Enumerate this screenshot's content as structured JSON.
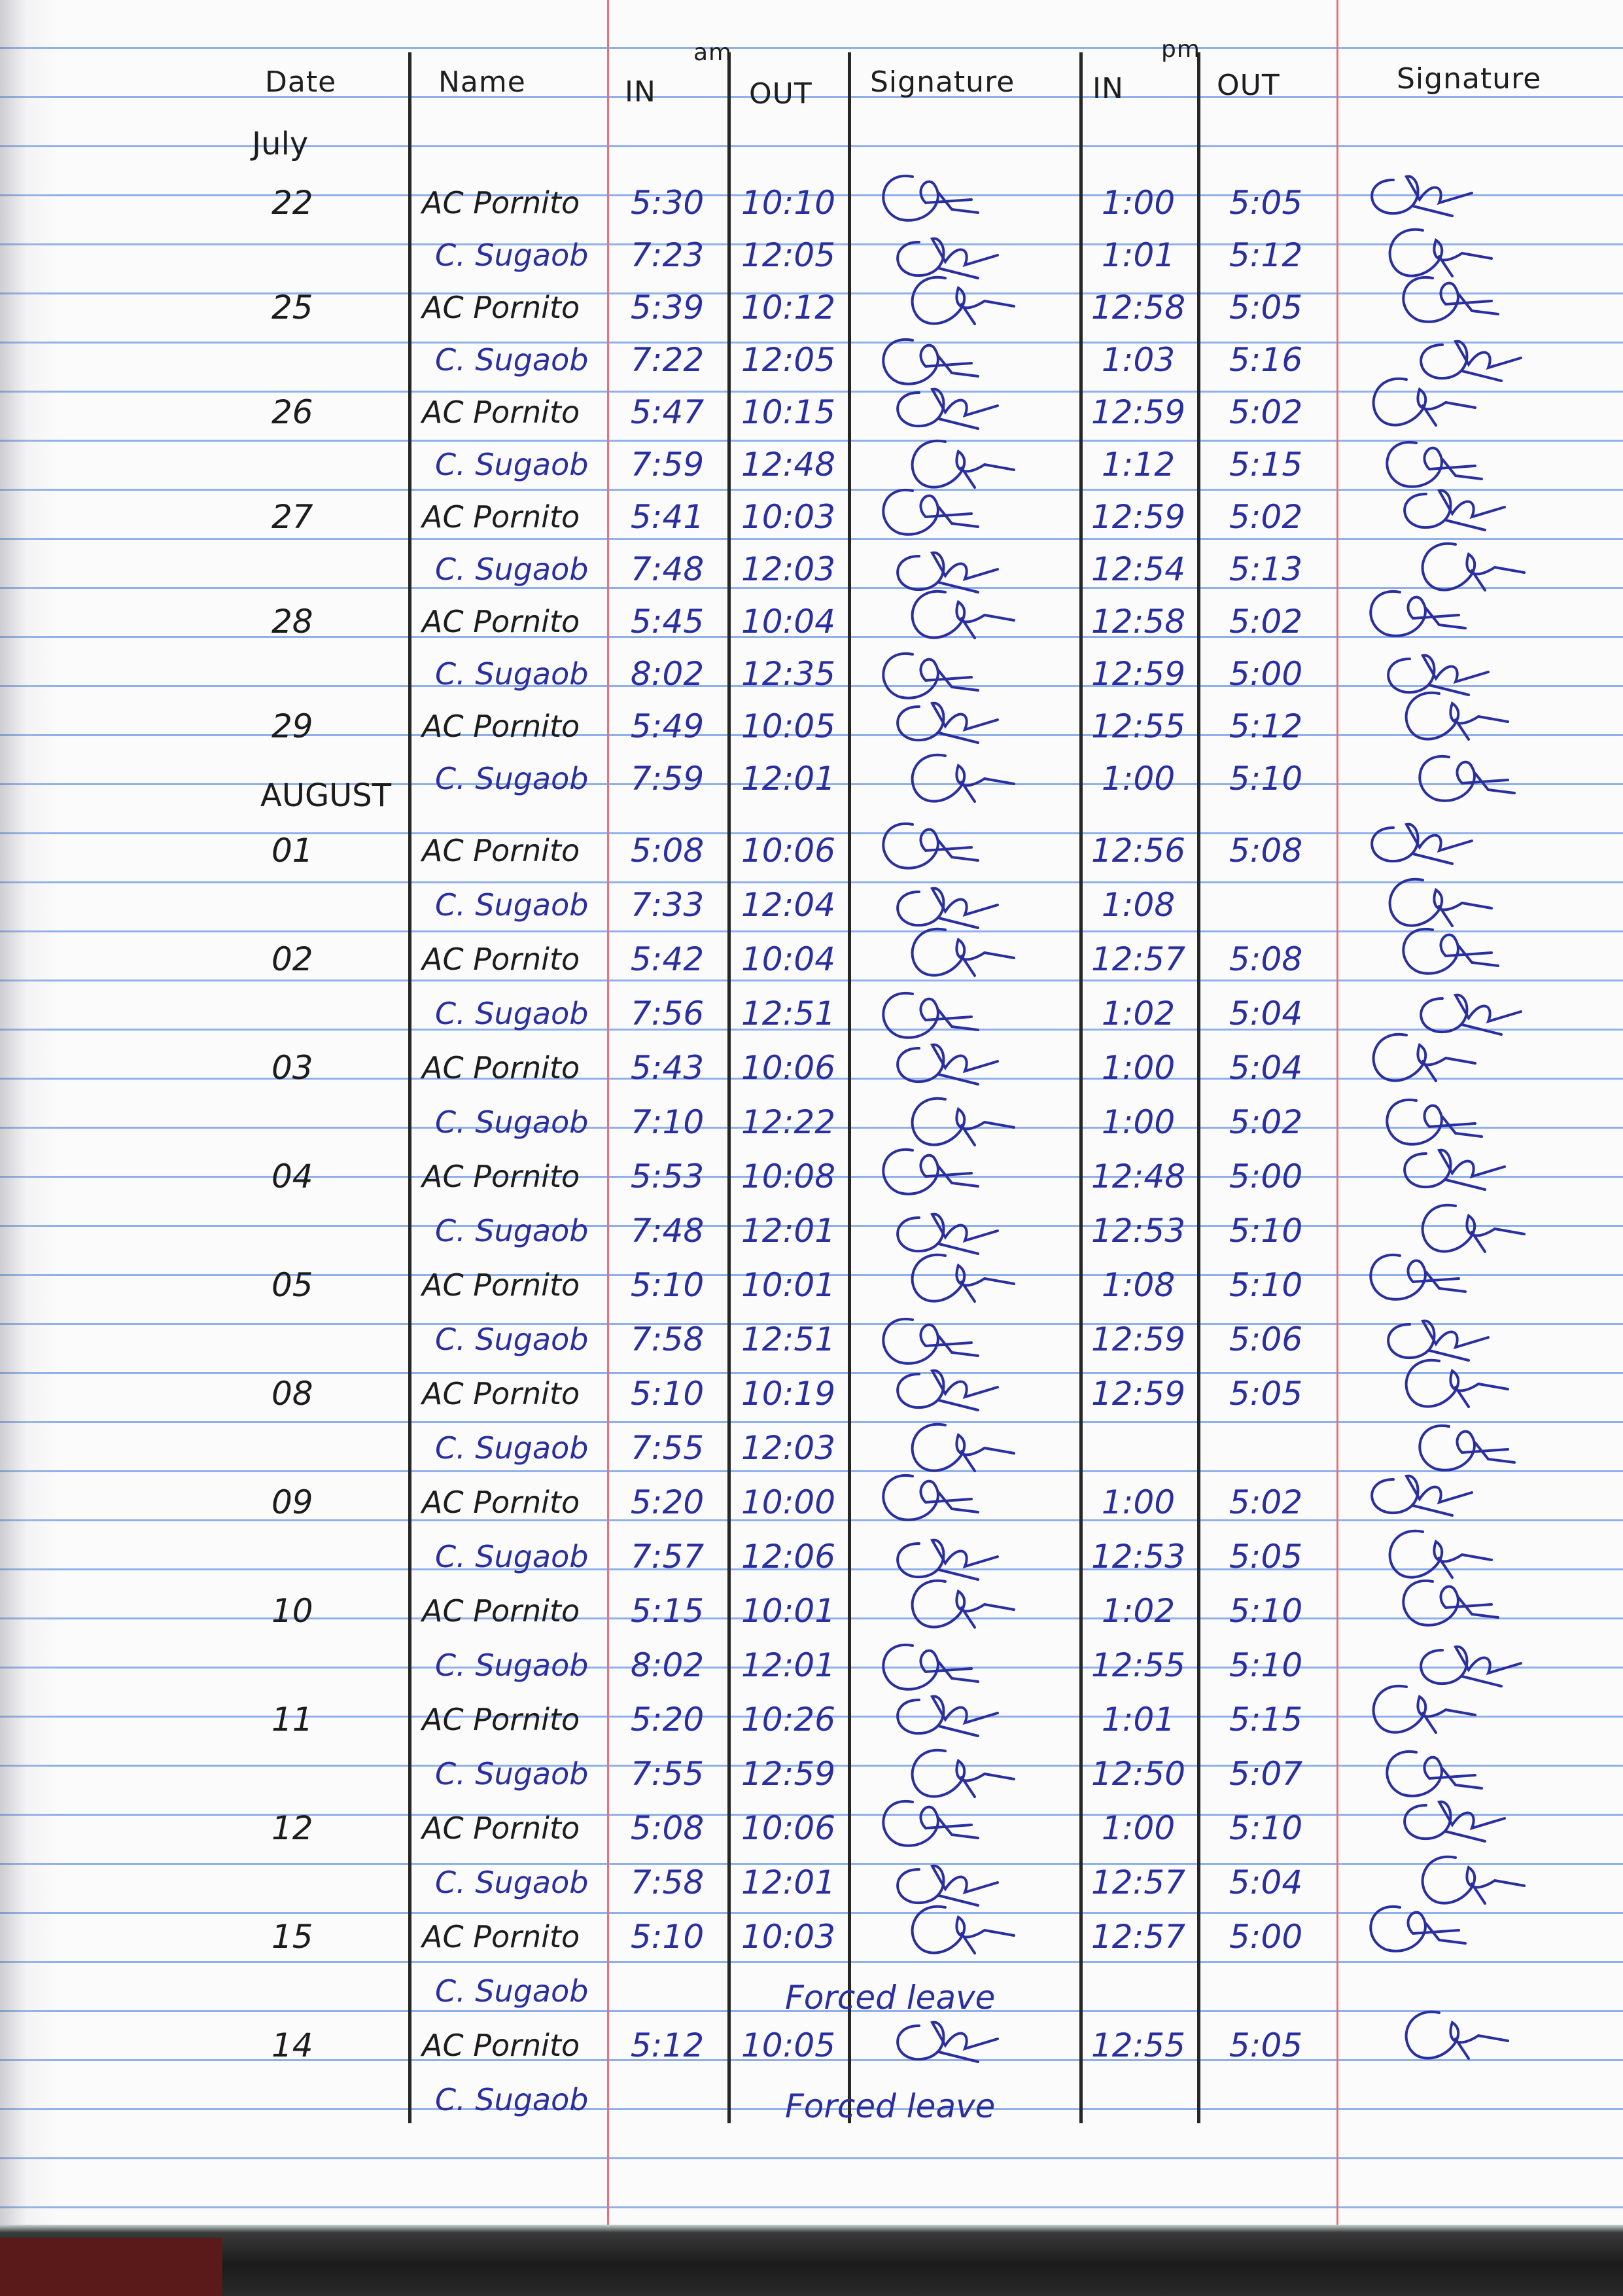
{
  "header": {
    "date": "Date",
    "name": "Name",
    "am_label": "am",
    "pm_label": "pm",
    "am_in": "IN",
    "am_out": "OUT",
    "am_signature": "Signature",
    "pm_in": "IN",
    "pm_out": "OUT",
    "pm_signature": "Signature"
  },
  "months": {
    "first": "July",
    "second": "AUGUST"
  },
  "colors": {
    "blue_ink": "#2a2fa0",
    "black_ink": "#1c1c1c",
    "rule_blue": "#8fb0e8",
    "margin_red": "#e8707a"
  },
  "rows": [
    {
      "month_group": 0,
      "date": "22",
      "name": "AC Pornito",
      "am_in": "5:30",
      "am_out": "10:10",
      "pm_in": "1:00",
      "pm_out": "5:05"
    },
    {
      "month_group": 0,
      "date": "",
      "name": "C. Sugaob",
      "am_in": "7:23",
      "am_out": "12:05",
      "pm_in": "1:01",
      "pm_out": "5:12"
    },
    {
      "month_group": 0,
      "date": "25",
      "name": "AC Pornito",
      "am_in": "5:39",
      "am_out": "10:12",
      "pm_in": "12:58",
      "pm_out": "5:05"
    },
    {
      "month_group": 0,
      "date": "",
      "name": "C. Sugaob",
      "am_in": "7:22",
      "am_out": "12:05",
      "pm_in": "1:03",
      "pm_out": "5:16"
    },
    {
      "month_group": 0,
      "date": "26",
      "name": "AC Pornito",
      "am_in": "5:47",
      "am_out": "10:15",
      "pm_in": "12:59",
      "pm_out": "5:02"
    },
    {
      "month_group": 0,
      "date": "",
      "name": "C. Sugaob",
      "am_in": "7:59",
      "am_out": "12:48",
      "pm_in": "1:12",
      "pm_out": "5:15"
    },
    {
      "month_group": 0,
      "date": "27",
      "name": "AC Pornito",
      "am_in": "5:41",
      "am_out": "10:03",
      "pm_in": "12:59",
      "pm_out": "5:02"
    },
    {
      "month_group": 0,
      "date": "",
      "name": "C. Sugaob",
      "am_in": "7:48",
      "am_out": "12:03",
      "pm_in": "12:54",
      "pm_out": "5:13"
    },
    {
      "month_group": 0,
      "date": "28",
      "name": "AC Pornito",
      "am_in": "5:45",
      "am_out": "10:04",
      "pm_in": "12:58",
      "pm_out": "5:02"
    },
    {
      "month_group": 0,
      "date": "",
      "name": "C. Sugaob",
      "am_in": "8:02",
      "am_out": "12:35",
      "pm_in": "12:59",
      "pm_out": "5:00"
    },
    {
      "month_group": 0,
      "date": "29",
      "name": "AC Pornito",
      "am_in": "5:49",
      "am_out": "10:05",
      "pm_in": "12:55",
      "pm_out": "5:12"
    },
    {
      "month_group": 0,
      "date": "",
      "name": "C. Sugaob",
      "am_in": "7:59",
      "am_out": "12:01",
      "pm_in": "1:00",
      "pm_out": "5:10"
    },
    {
      "month_group": 1,
      "date": "01",
      "name": "AC Pornito",
      "am_in": "5:08",
      "am_out": "10:06",
      "pm_in": "12:56",
      "pm_out": "5:08"
    },
    {
      "month_group": 1,
      "date": "",
      "name": "C. Sugaob",
      "am_in": "7:33",
      "am_out": "12:04",
      "pm_in": "1:08",
      "pm_out": ""
    },
    {
      "month_group": 1,
      "date": "02",
      "name": "AC Pornito",
      "am_in": "5:42",
      "am_out": "10:04",
      "pm_in": "12:57",
      "pm_out": "5:08"
    },
    {
      "month_group": 1,
      "date": "",
      "name": "C. Sugaob",
      "am_in": "7:56",
      "am_out": "12:51",
      "pm_in": "1:02",
      "pm_out": "5:04"
    },
    {
      "month_group": 1,
      "date": "03",
      "name": "AC Pornito",
      "am_in": "5:43",
      "am_out": "10:06",
      "pm_in": "1:00",
      "pm_out": "5:04"
    },
    {
      "month_group": 1,
      "date": "",
      "name": "C. Sugaob",
      "am_in": "7:10",
      "am_out": "12:22",
      "pm_in": "1:00",
      "pm_out": "5:02"
    },
    {
      "month_group": 1,
      "date": "04",
      "name": "AC Pornito",
      "am_in": "5:53",
      "am_out": "10:08",
      "pm_in": "12:48",
      "pm_out": "5:00"
    },
    {
      "month_group": 1,
      "date": "",
      "name": "C. Sugaob",
      "am_in": "7:48",
      "am_out": "12:01",
      "pm_in": "12:53",
      "pm_out": "5:10"
    },
    {
      "month_group": 1,
      "date": "05",
      "name": "AC Pornito",
      "am_in": "5:10",
      "am_out": "10:01",
      "pm_in": "1:08",
      "pm_out": "5:10"
    },
    {
      "month_group": 1,
      "date": "",
      "name": "C. Sugaob",
      "am_in": "7:58",
      "am_out": "12:51",
      "pm_in": "12:59",
      "pm_out": "5:06"
    },
    {
      "month_group": 1,
      "date": "08",
      "name": "AC Pornito",
      "am_in": "5:10",
      "am_out": "10:19",
      "pm_in": "12:59",
      "pm_out": "5:05"
    },
    {
      "month_group": 1,
      "date": "",
      "name": "C. Sugaob",
      "am_in": "7:55",
      "am_out": "12:03",
      "pm_in": "",
      "pm_out": ""
    },
    {
      "month_group": 1,
      "date": "09",
      "name": "AC Pornito",
      "am_in": "5:20",
      "am_out": "10:00",
      "pm_in": "1:00",
      "pm_out": "5:02"
    },
    {
      "month_group": 1,
      "date": "",
      "name": "C. Sugaob",
      "am_in": "7:57",
      "am_out": "12:06",
      "pm_in": "12:53",
      "pm_out": "5:05"
    },
    {
      "month_group": 1,
      "date": "10",
      "name": "AC Pornito",
      "am_in": "5:15",
      "am_out": "10:01",
      "pm_in": "1:02",
      "pm_out": "5:10"
    },
    {
      "month_group": 1,
      "date": "",
      "name": "C. Sugaob",
      "am_in": "8:02",
      "am_out": "12:01",
      "pm_in": "12:55",
      "pm_out": "5:10"
    },
    {
      "month_group": 1,
      "date": "11",
      "name": "AC Pornito",
      "am_in": "5:20",
      "am_out": "10:26",
      "pm_in": "1:01",
      "pm_out": "5:15"
    },
    {
      "month_group": 1,
      "date": "",
      "name": "C. Sugaob",
      "am_in": "7:55",
      "am_out": "12:59",
      "pm_in": "12:50",
      "pm_out": "5:07"
    },
    {
      "month_group": 1,
      "date": "12",
      "name": "AC Pornito",
      "am_in": "5:08",
      "am_out": "10:06",
      "pm_in": "1:00",
      "pm_out": "5:10"
    },
    {
      "month_group": 1,
      "date": "",
      "name": "C. Sugaob",
      "am_in": "7:58",
      "am_out": "12:01",
      "pm_in": "12:57",
      "pm_out": "5:04"
    },
    {
      "month_group": 1,
      "date": "15",
      "name": "AC Pornito",
      "am_in": "5:10",
      "am_out": "10:03",
      "pm_in": "12:57",
      "pm_out": "5:00"
    },
    {
      "month_group": 1,
      "date": "",
      "name": "C. Sugaob",
      "note": "Forced leave"
    },
    {
      "month_group": 1,
      "date": "14",
      "name": "AC Pornito",
      "am_in": "5:12",
      "am_out": "10:05",
      "pm_in": "12:55",
      "pm_out": "5:05"
    },
    {
      "month_group": 1,
      "date": "",
      "name": "C. Sugaob",
      "note": "Forced leave"
    }
  ]
}
